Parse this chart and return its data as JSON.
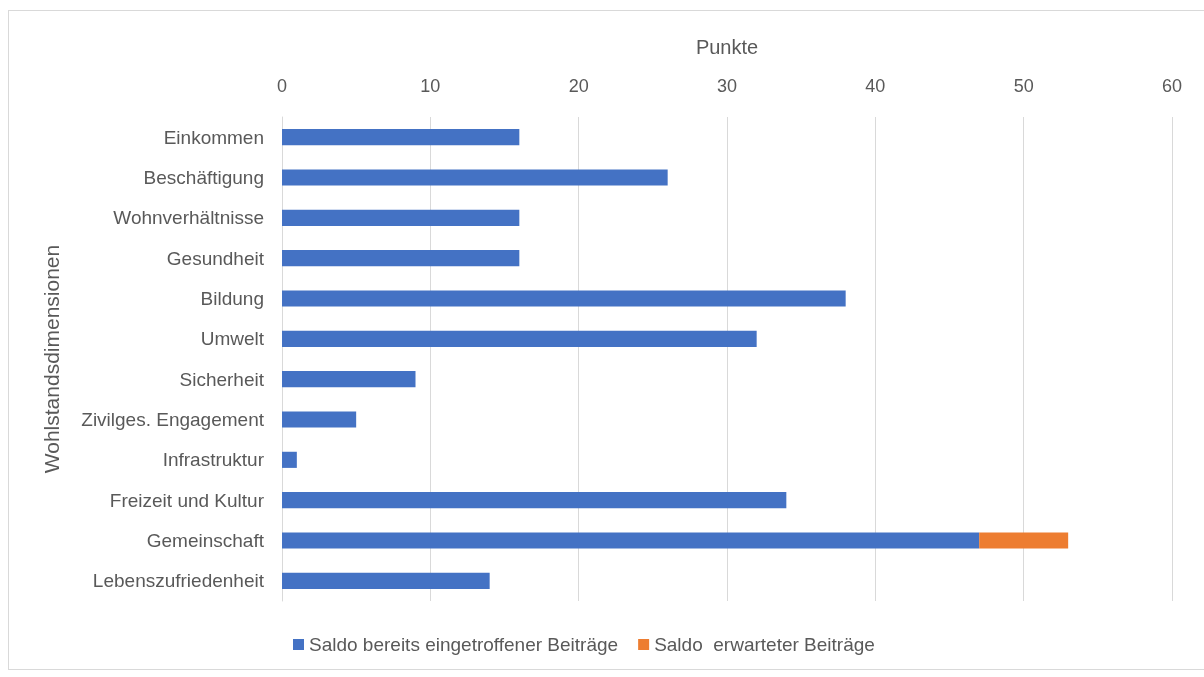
{
  "chart_data": {
    "type": "bar",
    "orientation": "horizontal",
    "stacked": true,
    "xlabel": "Punkte",
    "ylabel": "Wohlstandsdimensionen",
    "categories": [
      "Einkommen",
      "Beschäftigung",
      "Wohnverhältnisse",
      "Gesundheit",
      "Bildung",
      "Umwelt",
      "Sicherheit",
      "Zivilges. Engagement",
      "Infrastruktur",
      "Freizeit und Kultur",
      "Gemeinschaft",
      "Lebenszufriedenheit"
    ],
    "series": [
      {
        "name": "Saldo bereits eingetroffener Beiträge",
        "color": "#4472c4",
        "values": [
          16,
          26,
          16,
          16,
          38,
          32,
          9,
          5,
          1,
          34,
          47,
          14
        ]
      },
      {
        "name": "Saldo  erwarteter Beiträge",
        "color": "#ed7d31",
        "values": [
          null,
          null,
          null,
          null,
          null,
          null,
          null,
          null,
          null,
          null,
          6,
          null
        ]
      }
    ],
    "xlim": [
      0,
      60
    ],
    "xticks": [
      0,
      10,
      20,
      30,
      40,
      50,
      60
    ],
    "grid": "x",
    "legend": "bottom"
  }
}
